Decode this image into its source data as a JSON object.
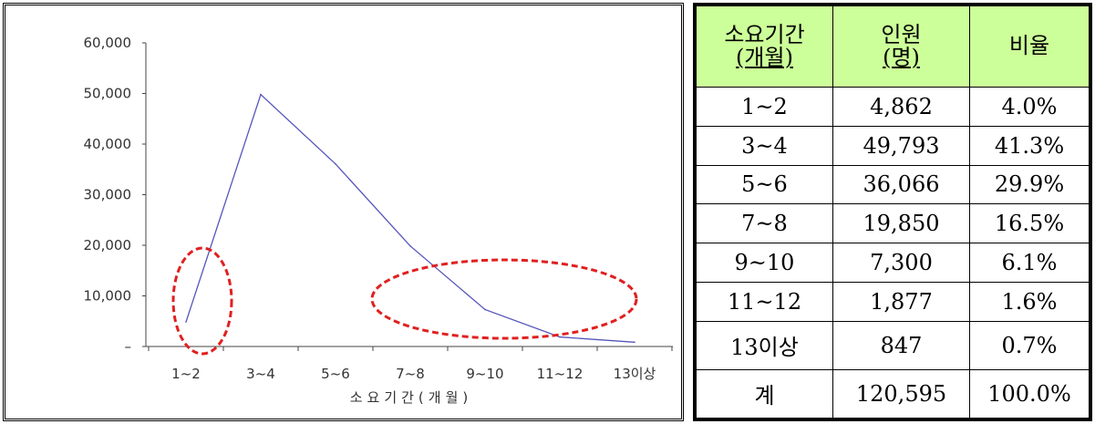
{
  "chart_data": {
    "type": "line",
    "categories": [
      "1~2",
      "3~4",
      "5~6",
      "7~8",
      "9~10",
      "11~12",
      "13이상"
    ],
    "values": [
      4862,
      49793,
      36066,
      19850,
      7300,
      1877,
      847
    ],
    "xlabel": "소요기간(개월)",
    "ylabel": "",
    "ylim": [
      0,
      60000
    ],
    "yticks": [
      "–",
      "10,000",
      "20,000",
      "30,000",
      "40,000",
      "50,000",
      "60,000"
    ],
    "line_color": "#5555bb",
    "annotations": [
      {
        "type": "dashed-ellipse",
        "color": "#e02020",
        "around": "1~2"
      },
      {
        "type": "dashed-ellipse",
        "color": "#e02020",
        "around": "9~10 to 11~12"
      }
    ],
    "grid": false
  },
  "table": {
    "headers": [
      {
        "line1": "소요기간",
        "line2": "(개월)"
      },
      {
        "line1": "인원",
        "line2": "(명)"
      },
      {
        "line1": "비율",
        "line2": ""
      }
    ],
    "header_color": "#ccff99",
    "rows": [
      [
        "1~2",
        "4,862",
        "4.0%"
      ],
      [
        "3~4",
        "49,793",
        "41.3%"
      ],
      [
        "5~6",
        "36,066",
        "29.9%"
      ],
      [
        "7~8",
        "19,850",
        "16.5%"
      ],
      [
        "9~10",
        "7,300",
        "6.1%"
      ],
      [
        "11~12",
        "1,877",
        "1.6%"
      ],
      [
        "13이상",
        "847",
        "0.7%"
      ],
      [
        "계",
        "120,595",
        "100.0%"
      ]
    ]
  }
}
